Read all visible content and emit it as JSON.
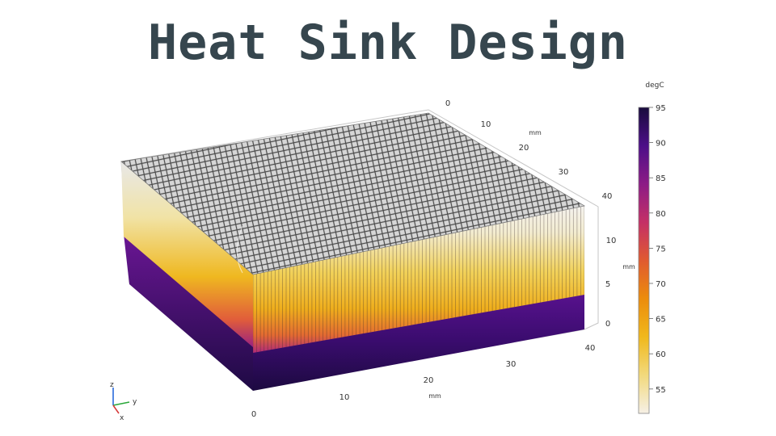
{
  "title": "Heat Sink Design",
  "colorbar": {
    "unit": "degC",
    "ticks": [
      "95",
      "90",
      "85",
      "80",
      "75",
      "70",
      "65",
      "60",
      "55"
    ],
    "colormap": [
      "#f6f0e6",
      "#f2d97c",
      "#f0b81c",
      "#ec8c0c",
      "#e05a30",
      "#c43066",
      "#8c1c86",
      "#4c0e88",
      "#180c3c"
    ]
  },
  "axes": {
    "x_ticks": [
      "0",
      "10",
      "20",
      "30",
      "40"
    ],
    "x_unit": "mm",
    "y_ticks": [
      "0",
      "10",
      "20",
      "30",
      "40"
    ],
    "y_unit": "mm",
    "z_ticks": [
      "0",
      "5",
      "10"
    ],
    "z_unit": "mm"
  },
  "triad": {
    "z": "z",
    "y": "y",
    "x": "x"
  }
}
